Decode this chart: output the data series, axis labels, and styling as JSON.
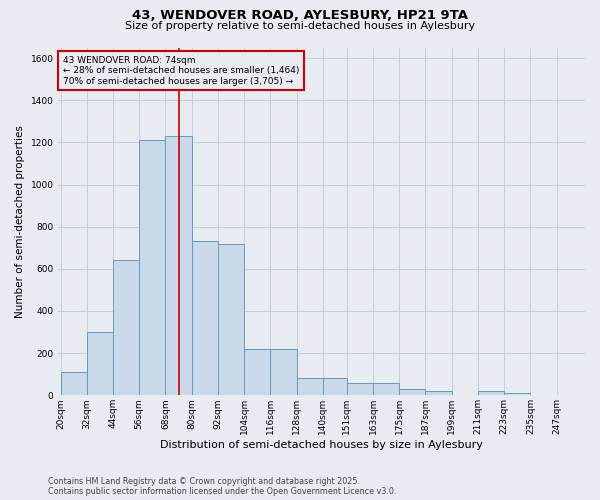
{
  "title_line1": "43, WENDOVER ROAD, AYLESBURY, HP21 9TA",
  "title_line2": "Size of property relative to semi-detached houses in Aylesbury",
  "xlabel": "Distribution of semi-detached houses by size in Aylesbury",
  "ylabel": "Number of semi-detached properties",
  "footer_line1": "Contains HM Land Registry data © Crown copyright and database right 2025.",
  "footer_line2": "Contains public sector information licensed under the Open Government Licence v3.0.",
  "bar_edges": [
    20,
    32,
    44,
    56,
    68,
    80,
    92,
    104,
    116,
    128,
    140,
    151,
    163,
    175,
    187,
    199,
    211,
    223,
    235,
    247,
    259
  ],
  "bar_heights": [
    110,
    300,
    640,
    1210,
    1230,
    730,
    720,
    220,
    220,
    80,
    80,
    60,
    60,
    30,
    20,
    0,
    20,
    10,
    0,
    0
  ],
  "bar_color": "#c9d9ea",
  "bar_edge_color": "#6a9ab8",
  "grid_color": "#c5ccd8",
  "background_color": "#e9ebf2",
  "vline_x": 74,
  "vline_color": "#cc0000",
  "property_label": "43 WENDOVER ROAD: 74sqm",
  "smaller_label": "← 28% of semi-detached houses are smaller (1,464)",
  "larger_label": "70% of semi-detached houses are larger (3,705) →",
  "annotation_box_edgecolor": "#cc0000",
  "ylim": [
    0,
    1650
  ],
  "yticks": [
    0,
    200,
    400,
    600,
    800,
    1000,
    1200,
    1400,
    1600
  ],
  "title1_fontsize": 9.5,
  "title2_fontsize": 8,
  "xlabel_fontsize": 8,
  "ylabel_fontsize": 7.5,
  "tick_fontsize": 6.5,
  "footer_fontsize": 5.8
}
